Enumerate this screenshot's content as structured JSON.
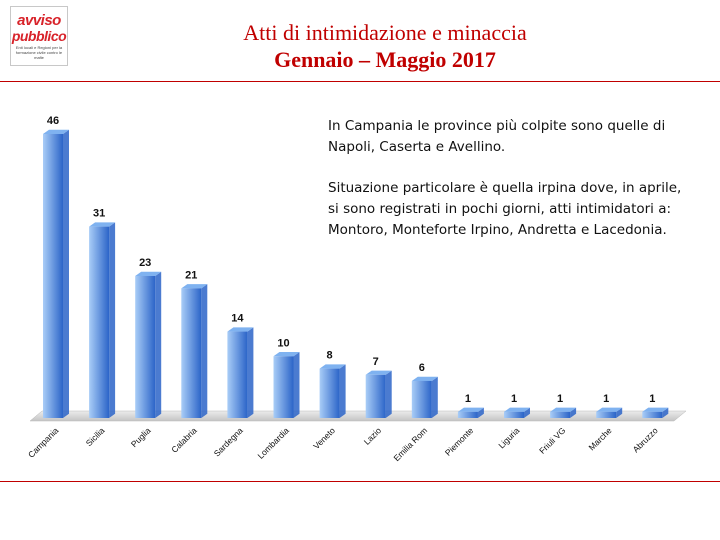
{
  "header": {
    "title_line1": "Atti di intimidazione e minaccia",
    "title_line2": "Gennaio – Maggio 2017"
  },
  "logo": {
    "line1": "avviso",
    "line2": "pubblico",
    "tagline": "Enti locali e Regioni per la formazione civile contro le mafie"
  },
  "notes": {
    "paragraph1": "In Campania le province più colpite sono quelle di Napoli, Caserta e Avellino.",
    "paragraph2": "Situazione particolare è quella irpina dove, in aprile, si sono registrati in pochi giorni, atti intimidatori a: Montoro, Monteforte Irpino, Andretta e Lacedonia."
  },
  "colors": {
    "title": "#c00000",
    "bar_light": "#a9cdf7",
    "bar_dark": "#2b64c8",
    "floor": "#d9d9d9"
  },
  "chart_data": {
    "type": "bar",
    "categories": [
      "Campania",
      "Sicilia",
      "Puglia",
      "Calabria",
      "Sardegna",
      "Lombardia",
      "Veneto",
      "Lazio",
      "Emilia Rom",
      "Piemonte",
      "Liguria",
      "Friuli VG",
      "Marche",
      "Abruzzo"
    ],
    "values": [
      46,
      31,
      23,
      21,
      14,
      10,
      8,
      7,
      6,
      1,
      1,
      1,
      1,
      1
    ],
    "title": "",
    "xlabel": "",
    "ylabel": "",
    "ylim": [
      0,
      46
    ],
    "grid": false,
    "legend": "none"
  }
}
